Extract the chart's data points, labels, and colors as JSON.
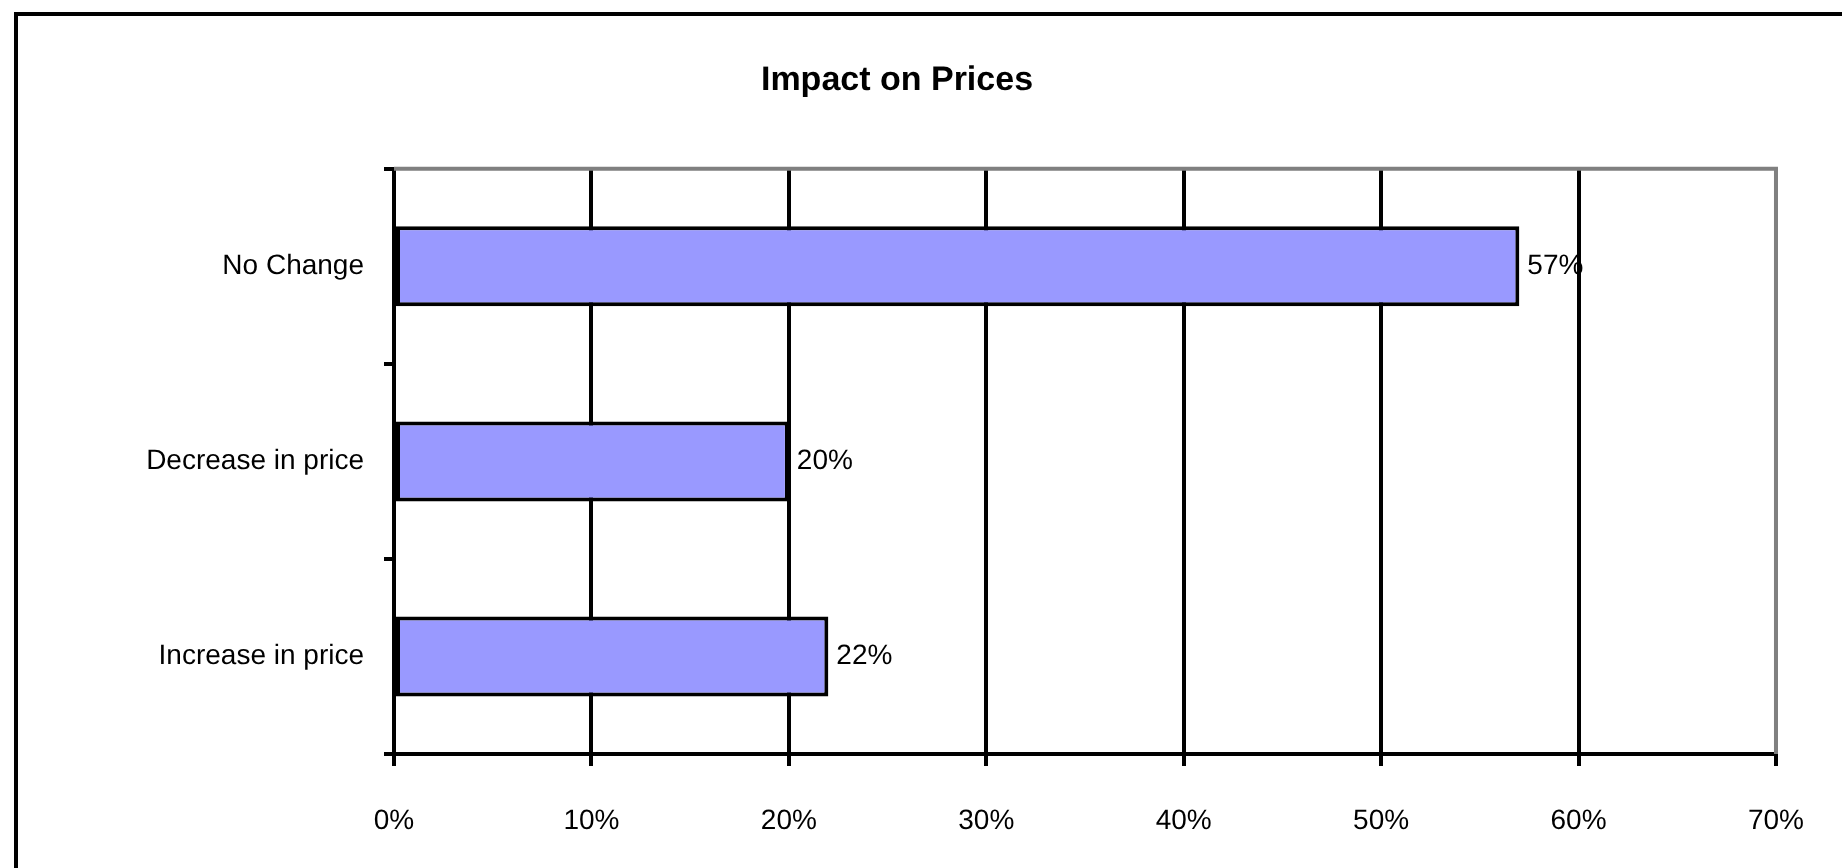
{
  "chart_data": {
    "type": "bar",
    "orientation": "horizontal",
    "title": "Impact on Prices",
    "categories": [
      "No Change",
      "Decrease in price",
      "Increase in price"
    ],
    "values": [
      57,
      20,
      22
    ],
    "color": "#9999ff",
    "value_labels": [
      "57%",
      "20%",
      "22%"
    ],
    "xlim": [
      0,
      70
    ],
    "xticks": [
      {
        "value": 0,
        "label": "0%"
      },
      {
        "value": 10,
        "label": "10%"
      },
      {
        "value": 20,
        "label": "20%"
      },
      {
        "value": 30,
        "label": "30%"
      },
      {
        "value": 40,
        "label": "40%"
      },
      {
        "value": 50,
        "label": "50%"
      },
      {
        "value": 60,
        "label": "60%"
      },
      {
        "value": 70,
        "label": "70%"
      }
    ],
    "grid": "x"
  }
}
